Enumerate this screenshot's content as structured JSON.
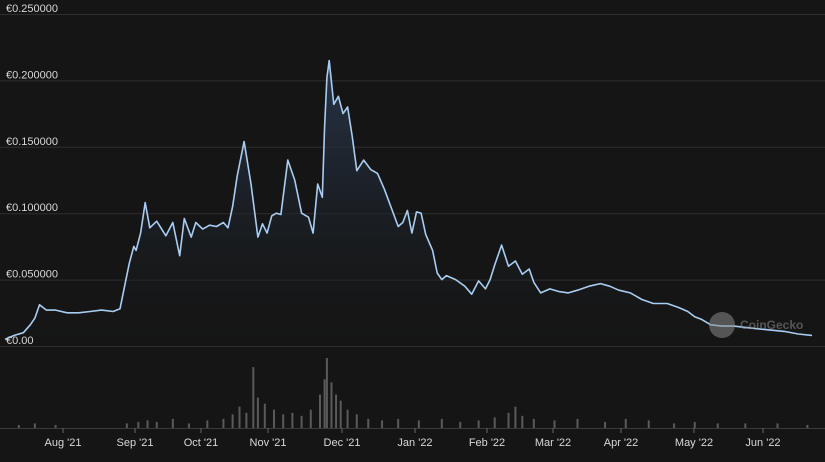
{
  "colors": {
    "background": "#151515",
    "grid": "#2f2f2f",
    "price_line": "#a9cdf2",
    "area_top": "#2a3a4f",
    "volume_bar": "#5a5a5a",
    "tick_text": "#d8d8d8"
  },
  "watermark": {
    "text": "CoinGecko",
    "icon": "gecko-logo-icon"
  },
  "chart_data": [
    {
      "type": "area",
      "title": "",
      "xlabel": "",
      "ylabel": "",
      "grid": true,
      "x_ticks": [
        "Aug '21",
        "Sep '21",
        "Oct '21",
        "Nov '21",
        "Dec '21",
        "Jan '22",
        "Feb '22",
        "Mar '22",
        "Apr '22",
        "May '22",
        "Jun '22"
      ],
      "y_ticks": [
        "€0.00",
        "€0.050000",
        "€0.100000",
        "€0.150000",
        "€0.200000",
        "€0.250000"
      ],
      "ylim": [
        0,
        0.25
      ],
      "xlim": [
        "2021-07-14",
        "2022-06-30"
      ],
      "series": [
        {
          "values_x": [
            "2021-07-14",
            "2021-07-18",
            "2021-07-22",
            "2021-07-25",
            "2021-07-27",
            "2021-07-29",
            "2021-08-01",
            "2021-08-05",
            "2021-08-10",
            "2021-08-15",
            "2021-08-20",
            "2021-08-25",
            "2021-08-30",
            "2021-09-02",
            "2021-09-04",
            "2021-09-06",
            "2021-09-08",
            "2021-09-09",
            "2021-09-11",
            "2021-09-13",
            "2021-09-15",
            "2021-09-18",
            "2021-09-22",
            "2021-09-25",
            "2021-09-28",
            "2021-09-30",
            "2021-10-03",
            "2021-10-05",
            "2021-10-08",
            "2021-10-11",
            "2021-10-14",
            "2021-10-17",
            "2021-10-19",
            "2021-10-21",
            "2021-10-23",
            "2021-10-26",
            "2021-10-29",
            "2021-11-01",
            "2021-11-03",
            "2021-11-05",
            "2021-11-07",
            "2021-11-09",
            "2021-11-11",
            "2021-11-14",
            "2021-11-17",
            "2021-11-20",
            "2021-11-23",
            "2021-11-25",
            "2021-11-27",
            "2021-11-28",
            "2021-11-29",
            "2021-11-30",
            "2021-12-01",
            "2021-12-02",
            "2021-12-04",
            "2021-12-06",
            "2021-12-08",
            "2021-12-10",
            "2021-12-12",
            "2021-12-14",
            "2021-12-17",
            "2021-12-20",
            "2021-12-23",
            "2021-12-26",
            "2021-12-29",
            "2022-01-01",
            "2022-01-03",
            "2022-01-05",
            "2022-01-07",
            "2022-01-09",
            "2022-01-11",
            "2022-01-13",
            "2022-01-16",
            "2022-01-18",
            "2022-01-20",
            "2022-01-22",
            "2022-01-26",
            "2022-01-30",
            "2022-02-02",
            "2022-02-05",
            "2022-02-08",
            "2022-02-10",
            "2022-02-12",
            "2022-02-15",
            "2022-02-18",
            "2022-02-21",
            "2022-02-24",
            "2022-02-27",
            "2022-03-01",
            "2022-03-04",
            "2022-03-08",
            "2022-03-12",
            "2022-03-16",
            "2022-03-20",
            "2022-03-25",
            "2022-03-30",
            "2022-04-03",
            "2022-04-07",
            "2022-04-12",
            "2022-04-17",
            "2022-04-22",
            "2022-04-28",
            "2022-05-03",
            "2022-05-07",
            "2022-05-10",
            "2022-05-13",
            "2022-05-17",
            "2022-05-22",
            "2022-05-27",
            "2022-06-01",
            "2022-06-06",
            "2022-06-12",
            "2022-06-18",
            "2022-06-24",
            "2022-06-30"
          ],
          "values": [
            0.005,
            0.008,
            0.01,
            0.016,
            0.021,
            0.031,
            0.027,
            0.027,
            0.025,
            0.025,
            0.026,
            0.027,
            0.026,
            0.028,
            0.045,
            0.062,
            0.075,
            0.072,
            0.085,
            0.108,
            0.089,
            0.094,
            0.083,
            0.093,
            0.068,
            0.096,
            0.082,
            0.093,
            0.088,
            0.091,
            0.09,
            0.093,
            0.089,
            0.105,
            0.128,
            0.154,
            0.122,
            0.082,
            0.092,
            0.085,
            0.098,
            0.1,
            0.099,
            0.14,
            0.125,
            0.1,
            0.097,
            0.085,
            0.122,
            0.117,
            0.112,
            0.165,
            0.202,
            0.215,
            0.182,
            0.188,
            0.175,
            0.18,
            0.158,
            0.132,
            0.14,
            0.133,
            0.13,
            0.118,
            0.104,
            0.09,
            0.093,
            0.102,
            0.085,
            0.101,
            0.1,
            0.084,
            0.072,
            0.055,
            0.05,
            0.053,
            0.05,
            0.045,
            0.039,
            0.049,
            0.043,
            0.05,
            0.061,
            0.076,
            0.06,
            0.064,
            0.054,
            0.058,
            0.048,
            0.04,
            0.043,
            0.041,
            0.04,
            0.042,
            0.045,
            0.047,
            0.045,
            0.042,
            0.04,
            0.035,
            0.032,
            0.032,
            0.029,
            0.026,
            0.022,
            0.02,
            0.016,
            0.015,
            0.015,
            0.014,
            0.013,
            0.012,
            0.011,
            0.009,
            0.008
          ]
        }
      ]
    },
    {
      "type": "bar",
      "title": "",
      "xlabel": "",
      "ylabel": "",
      "series": [
        {
          "values_x": [
            "2021-07-20",
            "2021-07-27",
            "2021-08-05",
            "2021-09-05",
            "2021-09-10",
            "2021-09-14",
            "2021-09-18",
            "2021-09-25",
            "2021-10-02",
            "2021-10-10",
            "2021-10-17",
            "2021-10-21",
            "2021-10-24",
            "2021-10-27",
            "2021-10-30",
            "2021-11-01",
            "2021-11-04",
            "2021-11-08",
            "2021-11-12",
            "2021-11-16",
            "2021-11-20",
            "2021-11-24",
            "2021-11-28",
            "2021-11-30",
            "2021-12-01",
            "2021-12-03",
            "2021-12-05",
            "2021-12-07",
            "2021-12-10",
            "2021-12-14",
            "2021-12-19",
            "2021-12-25",
            "2022-01-01",
            "2022-01-10",
            "2022-01-20",
            "2022-01-28",
            "2022-02-05",
            "2022-02-12",
            "2022-02-18",
            "2022-02-21",
            "2022-02-24",
            "2022-03-01",
            "2022-03-10",
            "2022-03-20",
            "2022-04-01",
            "2022-04-10",
            "2022-04-20",
            "2022-05-01",
            "2022-05-10",
            "2022-05-20",
            "2022-06-01",
            "2022-06-15",
            "2022-06-28"
          ],
          "values": [
            2,
            3,
            2,
            3,
            4,
            5,
            4,
            6,
            3,
            5,
            6,
            9,
            14,
            10,
            40,
            20,
            16,
            12,
            9,
            10,
            8,
            12,
            22,
            32,
            46,
            30,
            22,
            18,
            12,
            9,
            6,
            5,
            6,
            5,
            6,
            4,
            5,
            7,
            10,
            14,
            8,
            6,
            5,
            6,
            4,
            6,
            5,
            3,
            4,
            3,
            3,
            3,
            2
          ]
        }
      ]
    }
  ]
}
